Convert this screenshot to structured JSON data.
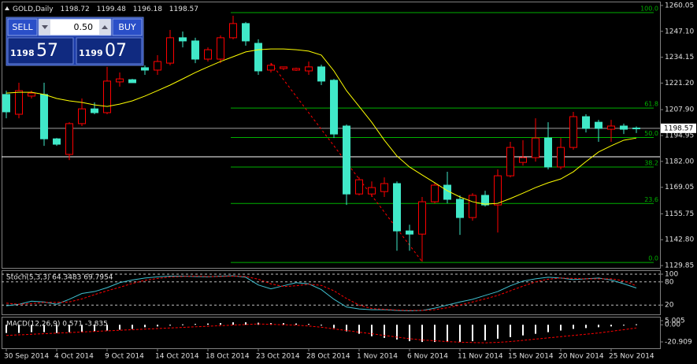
{
  "trade_panel": {
    "sell": "SELL",
    "buy": "BUY",
    "lot": "0.50",
    "sell_price": {
      "big": "1198",
      "pips": "57"
    },
    "buy_price": {
      "big": "1199",
      "pips": "07"
    }
  },
  "chart_data": [
    {
      "type": "candlestick",
      "title": "GOLD,Daily",
      "categories": [
        "30 Sep 2014",
        null,
        null,
        null,
        "4 Oct 2014",
        null,
        null,
        null,
        "9 Oct 2014",
        null,
        null,
        null,
        "14 Oct 2014",
        null,
        null,
        null,
        "18 Oct 2014",
        null,
        null,
        null,
        "23 Oct 2014",
        null,
        null,
        null,
        "28 Oct 2014",
        null,
        null,
        null,
        "1 Nov 2014",
        null,
        null,
        null,
        "6 Nov 2014",
        null,
        null,
        null,
        "11 Nov 2014",
        null,
        null,
        null,
        "15 Nov 2014",
        null,
        null,
        null,
        "20 Nov 2014",
        null,
        null,
        null,
        "25 Nov 2014",
        null,
        null
      ],
      "open": [
        1215.5,
        1205.6,
        1214.7,
        1215.5,
        1193.3,
        1185.5,
        1200.9,
        1208.3,
        1206.4,
        1221.8,
        1222.9,
        1228.9,
        1227.7,
        1231.2,
        1243.9,
        1242.3,
        1233.2,
        1233.2,
        1243.9,
        1251.0,
        1241.1,
        1227.7,
        1228.5,
        1227.7,
        1227.3,
        1229.3,
        1222.6,
        1199.7,
        1165.7,
        1165.7,
        1166.9,
        1170.9,
        1147.2,
        1145.6,
        1161.8,
        1170.1,
        1163.0,
        1153.9,
        1165.0,
        1160.2,
        1174.8,
        1181.5,
        1183.9,
        1193.7,
        1179.2,
        1189.0,
        1204.4,
        1201.6,
        1198.1,
        1199.7,
        1198.72
      ],
      "high": [
        1217.4,
        1221.4,
        1217.4,
        1221.4,
        1193.7,
        1201.6,
        1213.5,
        1211.5,
        1229.3,
        1226.5,
        1223.3,
        1230.1,
        1235.2,
        1247.8,
        1247.0,
        1243.9,
        1239.1,
        1245.1,
        1254.9,
        1251.8,
        1243.1,
        1231.2,
        1229.3,
        1228.9,
        1232.0,
        1230.4,
        1223.3,
        1200.5,
        1174.0,
        1172.0,
        1174.0,
        1172.0,
        1150.3,
        1164.2,
        1171.3,
        1176.8,
        1165.0,
        1166.1,
        1167.3,
        1178.0,
        1191.8,
        1192.6,
        1203.6,
        1201.6,
        1193.7,
        1206.8,
        1205.6,
        1202.8,
        1202.8,
        1200.9,
        1199.48
      ],
      "low": [
        1203.6,
        1203.6,
        1213.5,
        1189.8,
        1189.8,
        1182.7,
        1199.7,
        1205.6,
        1205.6,
        1219.4,
        1221.4,
        1225.3,
        1225.3,
        1230.1,
        1239.1,
        1231.2,
        1232.0,
        1231.2,
        1243.1,
        1239.9,
        1225.3,
        1226.5,
        1227.7,
        1227.3,
        1225.3,
        1220.2,
        1193.7,
        1160.2,
        1165.0,
        1164.2,
        1164.2,
        1137.3,
        1137.3,
        1131.8,
        1161.0,
        1161.0,
        1145.2,
        1152.3,
        1159.4,
        1146.4,
        1174.0,
        1179.9,
        1181.9,
        1178.0,
        1178.0,
        1187.8,
        1196.5,
        1191.8,
        1191.8,
        1195.7,
        1196.18
      ],
      "close": [
        1206.8,
        1217.4,
        1216.2,
        1193.3,
        1190.6,
        1200.9,
        1208.3,
        1206.4,
        1222.2,
        1223.3,
        1221.4,
        1227.7,
        1232.0,
        1243.9,
        1242.3,
        1233.2,
        1237.9,
        1243.9,
        1251.0,
        1242.3,
        1227.3,
        1230.1,
        1229.3,
        1228.5,
        1229.3,
        1222.2,
        1195.7,
        1165.7,
        1172.8,
        1168.9,
        1170.9,
        1147.2,
        1145.6,
        1161.8,
        1170.1,
        1163.0,
        1153.9,
        1165.0,
        1160.2,
        1174.8,
        1189.0,
        1183.9,
        1193.7,
        1179.2,
        1189.0,
        1204.4,
        1198.5,
        1198.5,
        1199.7,
        1198.1,
        1198.57
      ],
      "bull_color": "#ff0000",
      "bear_color": "#40e8c8",
      "ma": {
        "color": "#ffff00",
        "values": [
          1216.2,
          1216.6,
          1216.6,
          1215.5,
          1213.5,
          1212.3,
          1211.5,
          1210.3,
          1209.5,
          1210.7,
          1212.3,
          1214.7,
          1217.4,
          1220.2,
          1223.3,
          1226.5,
          1229.3,
          1232.0,
          1234.4,
          1236.8,
          1237.9,
          1238.3,
          1238.3,
          1237.9,
          1237.2,
          1235.2,
          1227.3,
          1217.4,
          1209.5,
          1201.6,
          1192.6,
          1184.7,
          1179.2,
          1175.2,
          1171.3,
          1167.3,
          1164.2,
          1161.8,
          1160.6,
          1161.0,
          1163.4,
          1166.1,
          1168.9,
          1171.3,
          1173.2,
          1176.8,
          1181.9,
          1186.7,
          1189.8,
          1192.6,
          1193.7
        ]
      },
      "trend_line": {
        "color": "#ff0000",
        "x": [
          21,
          33
        ],
        "values": [
          1231.2,
          1131.8
        ]
      },
      "fib": {
        "color": "#00b000",
        "high": 1256.5,
        "low": 1131.4,
        "levels": [
          {
            "value": 100,
            "label": "100.0"
          },
          61.8,
          {
            "value": 50,
            "label": "50.0"
          },
          38.2,
          23.6,
          {
            "value": 0,
            "label": "0.0"
          }
        ]
      },
      "hlines": [
        {
          "value": 1184.3,
          "color": "#ffffff"
        }
      ],
      "bid_color": "#a0a0a0",
      "ylim": [
        1128.7,
        1262.0
      ],
      "yticks": [
        1260.05,
        {
          "value": 1247.1,
          "label": "1247.10"
        },
        1234.15,
        {
          "value": 1221.2,
          "label": "1221.20"
        },
        {
          "value": 1207.9,
          "label": "1207.90"
        },
        1194.95,
        {
          "value": 1182,
          "label": "1182.00"
        },
        1169.05,
        1155.75,
        {
          "value": 1142.8,
          "label": "1142.80"
        },
        1129.85
      ],
      "grid": false
    },
    {
      "type": "line",
      "title": "Stoch(5,3,3) 64.3483 69.7954",
      "series": [
        {
          "color": "#40c0d0",
          "dash": false,
          "values": [
            18,
            22,
            30,
            28,
            22,
            35,
            50,
            55,
            65,
            78,
            85,
            90,
            93,
            95,
            95,
            94,
            93,
            95,
            96,
            92,
            72,
            62,
            70,
            78,
            75,
            60,
            35,
            15,
            10,
            8,
            8,
            6,
            5,
            6,
            12,
            20,
            28,
            35,
            45,
            55,
            70,
            82,
            88,
            92,
            90,
            86,
            88,
            90,
            85,
            75,
            64.3483
          ]
        },
        {
          "color": "#ff0000",
          "dash": true,
          "values": [
            25,
            22,
            24,
            27,
            27,
            28,
            36,
            47,
            57,
            66,
            76,
            84,
            89,
            93,
            94,
            95,
            94,
            94,
            95,
            94,
            87,
            75,
            68,
            70,
            74,
            71,
            57,
            37,
            20,
            11,
            9,
            7,
            6,
            6,
            8,
            13,
            20,
            28,
            36,
            45,
            57,
            69,
            80,
            87,
            90,
            89,
            88,
            88,
            88,
            83,
            69.7954
          ]
        }
      ],
      "ylim": [
        0,
        100
      ],
      "yticks": [
        100,
        80,
        20
      ],
      "grid": true
    },
    {
      "type": "macd",
      "title": "MACD(12,26,9) 0.571 -3.835",
      "histogram": {
        "color": "#ffffff",
        "values": [
          -10,
          -10,
          -9,
          -9,
          -10,
          -9,
          -9,
          -8,
          -7,
          -6,
          -5,
          -3,
          -2,
          -1,
          0.5,
          1,
          1.5,
          2,
          3,
          3,
          2.5,
          2,
          2,
          1.5,
          1,
          -1,
          -4,
          -8,
          -11,
          -14,
          -16,
          -18,
          -20,
          -21,
          -21,
          -21,
          -21,
          -20,
          -19,
          -17,
          -15,
          -13,
          -11,
          -9,
          -7,
          -5,
          -4,
          -3,
          -2,
          -1,
          0.571
        ]
      },
      "signal": {
        "color": "#ff0000",
        "values": [
          -13,
          -12.3,
          -11.6,
          -10.9,
          -10.2,
          -9.5,
          -8.8,
          -8.1,
          -7.4,
          -6.7,
          -6,
          -5.3,
          -4.6,
          -3.9,
          -3.2,
          -2.5,
          -1.8,
          -1.1,
          -0.4,
          0.3,
          1,
          0.5,
          0,
          -0.5,
          -1.5,
          -3,
          -5,
          -7,
          -9,
          -11,
          -13,
          -15,
          -17,
          -18.5,
          -19.5,
          -20.5,
          -21.2,
          -21.7,
          -22,
          -21.5,
          -20.5,
          -19,
          -17.5,
          -16,
          -14.5,
          -13,
          -11.5,
          -10,
          -8,
          -6,
          -3.835
        ]
      },
      "ylim": [
        -26.7,
        8.85
      ],
      "yticks": [
        5.005,
        {
          "value": 0,
          "label": "0.00"
        },
        -20.909
      ],
      "grid": false
    }
  ]
}
